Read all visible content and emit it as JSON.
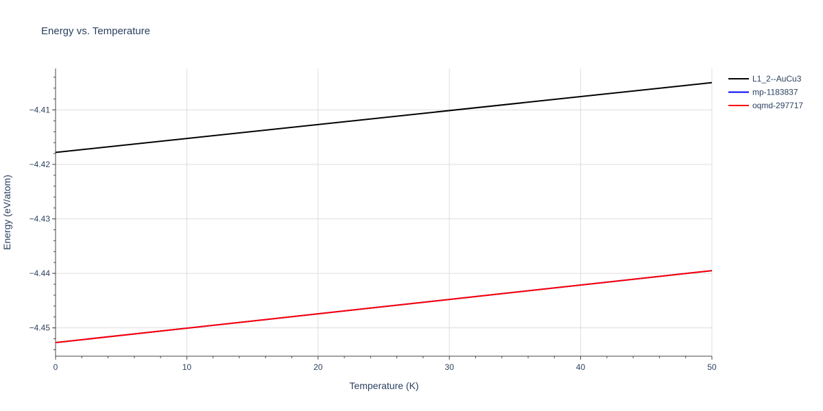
{
  "chart_data": {
    "type": "line",
    "title": "Energy vs. Temperature",
    "xlabel": "Temperature (K)",
    "ylabel": "Energy (eV/atom)",
    "xlim": [
      0,
      50
    ],
    "ylim": [
      -4.4552,
      -4.4024
    ],
    "x_ticks": [
      0,
      10,
      20,
      30,
      40,
      50
    ],
    "y_ticks": [
      -4.45,
      -4.44,
      -4.43,
      -4.42,
      -4.41
    ],
    "y_tick_labels": [
      "−4.45",
      "−4.44",
      "−4.43",
      "−4.42",
      "−4.41"
    ],
    "grid": true,
    "legend_position": "top-right",
    "series": [
      {
        "name": "L1_2--AuCu3",
        "color": "#000000",
        "x": [
          0,
          50
        ],
        "y": [
          -4.4178,
          -4.405
        ]
      },
      {
        "name": "mp-1183837",
        "color": "#0000ff",
        "x": [
          0,
          50
        ],
        "y": [
          -4.4527,
          -4.4395
        ]
      },
      {
        "name": "oqmd-297717",
        "color": "#ff0000",
        "x": [
          0,
          50
        ],
        "y": [
          -4.4527,
          -4.4395
        ]
      }
    ]
  }
}
